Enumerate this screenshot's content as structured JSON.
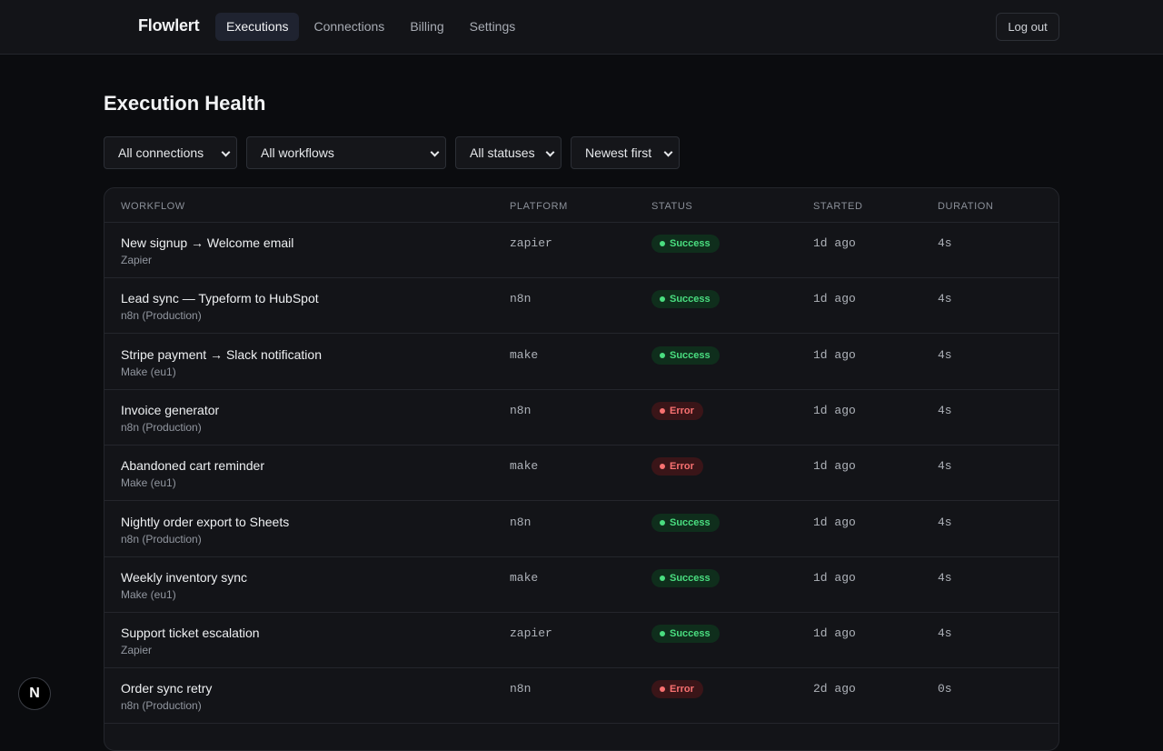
{
  "header": {
    "brand": "Flowlert",
    "nav": [
      "Executions",
      "Connections",
      "Billing",
      "Settings"
    ],
    "active_nav": "Executions",
    "logout_label": "Log out"
  },
  "page": {
    "title": "Execution Health"
  },
  "filters": {
    "connections": "All connections",
    "workflows": "All workflows",
    "statuses": "All statuses",
    "sort": "Newest first"
  },
  "table": {
    "columns": [
      "Workflow",
      "Platform",
      "Status",
      "Started",
      "Duration"
    ],
    "rows": [
      {
        "workflow": "New signup → Welcome email",
        "connection": "Zapier",
        "platform": "zapier",
        "status": "Success",
        "started": "1d ago",
        "duration": "4s"
      },
      {
        "workflow": "Lead sync — Typeform to HubSpot",
        "connection": "n8n (Production)",
        "platform": "n8n",
        "status": "Success",
        "started": "1d ago",
        "duration": "4s"
      },
      {
        "workflow": "Stripe payment → Slack notification",
        "connection": "Make (eu1)",
        "platform": "make",
        "status": "Success",
        "started": "1d ago",
        "duration": "4s"
      },
      {
        "workflow": "Invoice generator",
        "connection": "n8n (Production)",
        "platform": "n8n",
        "status": "Error",
        "started": "1d ago",
        "duration": "4s"
      },
      {
        "workflow": "Abandoned cart reminder",
        "connection": "Make (eu1)",
        "platform": "make",
        "status": "Error",
        "started": "1d ago",
        "duration": "4s"
      },
      {
        "workflow": "Nightly order export to Sheets",
        "connection": "n8n (Production)",
        "platform": "n8n",
        "status": "Success",
        "started": "1d ago",
        "duration": "4s"
      },
      {
        "workflow": "Weekly inventory sync",
        "connection": "Make (eu1)",
        "platform": "make",
        "status": "Success",
        "started": "1d ago",
        "duration": "4s"
      },
      {
        "workflow": "Support ticket escalation",
        "connection": "Zapier",
        "platform": "zapier",
        "status": "Success",
        "started": "1d ago",
        "duration": "4s"
      },
      {
        "workflow": "Order sync retry",
        "connection": "n8n (Production)",
        "platform": "n8n",
        "status": "Error",
        "started": "2d ago",
        "duration": "0s"
      }
    ]
  },
  "fab": {
    "label": "N"
  },
  "colors": {
    "success": "#4ade80",
    "error": "#f87171",
    "active_nav_bg": "#1f2330"
  }
}
